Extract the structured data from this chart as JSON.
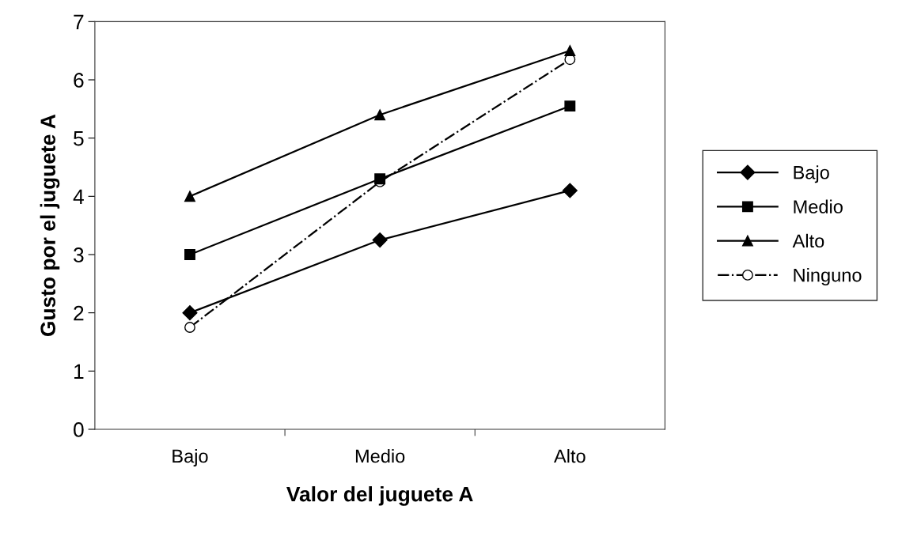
{
  "chart_data": {
    "type": "line",
    "xlabel": "Valor del juguete A",
    "ylabel": "Gusto por el juguete A",
    "categories": [
      "Bajo",
      "Medio",
      "Alto"
    ],
    "series": [
      {
        "name": "Bajo",
        "color": "#000000",
        "values": [
          2.0,
          3.25,
          4.1
        ],
        "marker": "diamond",
        "line_style": "solid"
      },
      {
        "name": "Medio",
        "color": "#000000",
        "values": [
          3.0,
          4.3,
          5.55
        ],
        "marker": "square",
        "line_style": "solid"
      },
      {
        "name": "Alto",
        "color": "#000000",
        "values": [
          4.0,
          5.4,
          6.5
        ],
        "marker": "triangle",
        "line_style": "solid"
      },
      {
        "name": "Ninguno",
        "color": "#000000",
        "values": [
          1.75,
          4.25,
          6.35
        ],
        "marker": "circle",
        "line_style": "dashdot"
      }
    ],
    "ylim": [
      0,
      7
    ],
    "yticks": [
      0,
      1,
      2,
      3,
      4,
      5,
      6,
      7
    ],
    "grid": false,
    "legend": "right"
  }
}
